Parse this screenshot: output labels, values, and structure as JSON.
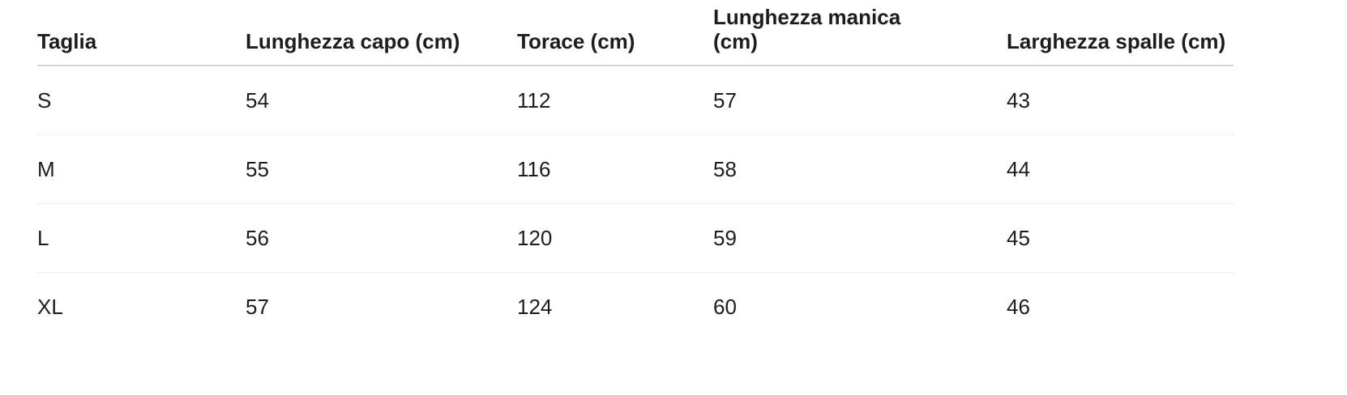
{
  "table": {
    "headers": [
      "Taglia",
      "Lunghezza capo (cm)",
      "Torace (cm)",
      "Lunghezza manica (cm)",
      "Larghezza spalle (cm)"
    ],
    "rows": [
      [
        "S",
        54,
        112,
        57,
        43
      ],
      [
        "M",
        55,
        116,
        58,
        44
      ],
      [
        "L",
        56,
        120,
        59,
        45
      ],
      [
        "XL",
        57,
        124,
        60,
        46
      ]
    ]
  }
}
